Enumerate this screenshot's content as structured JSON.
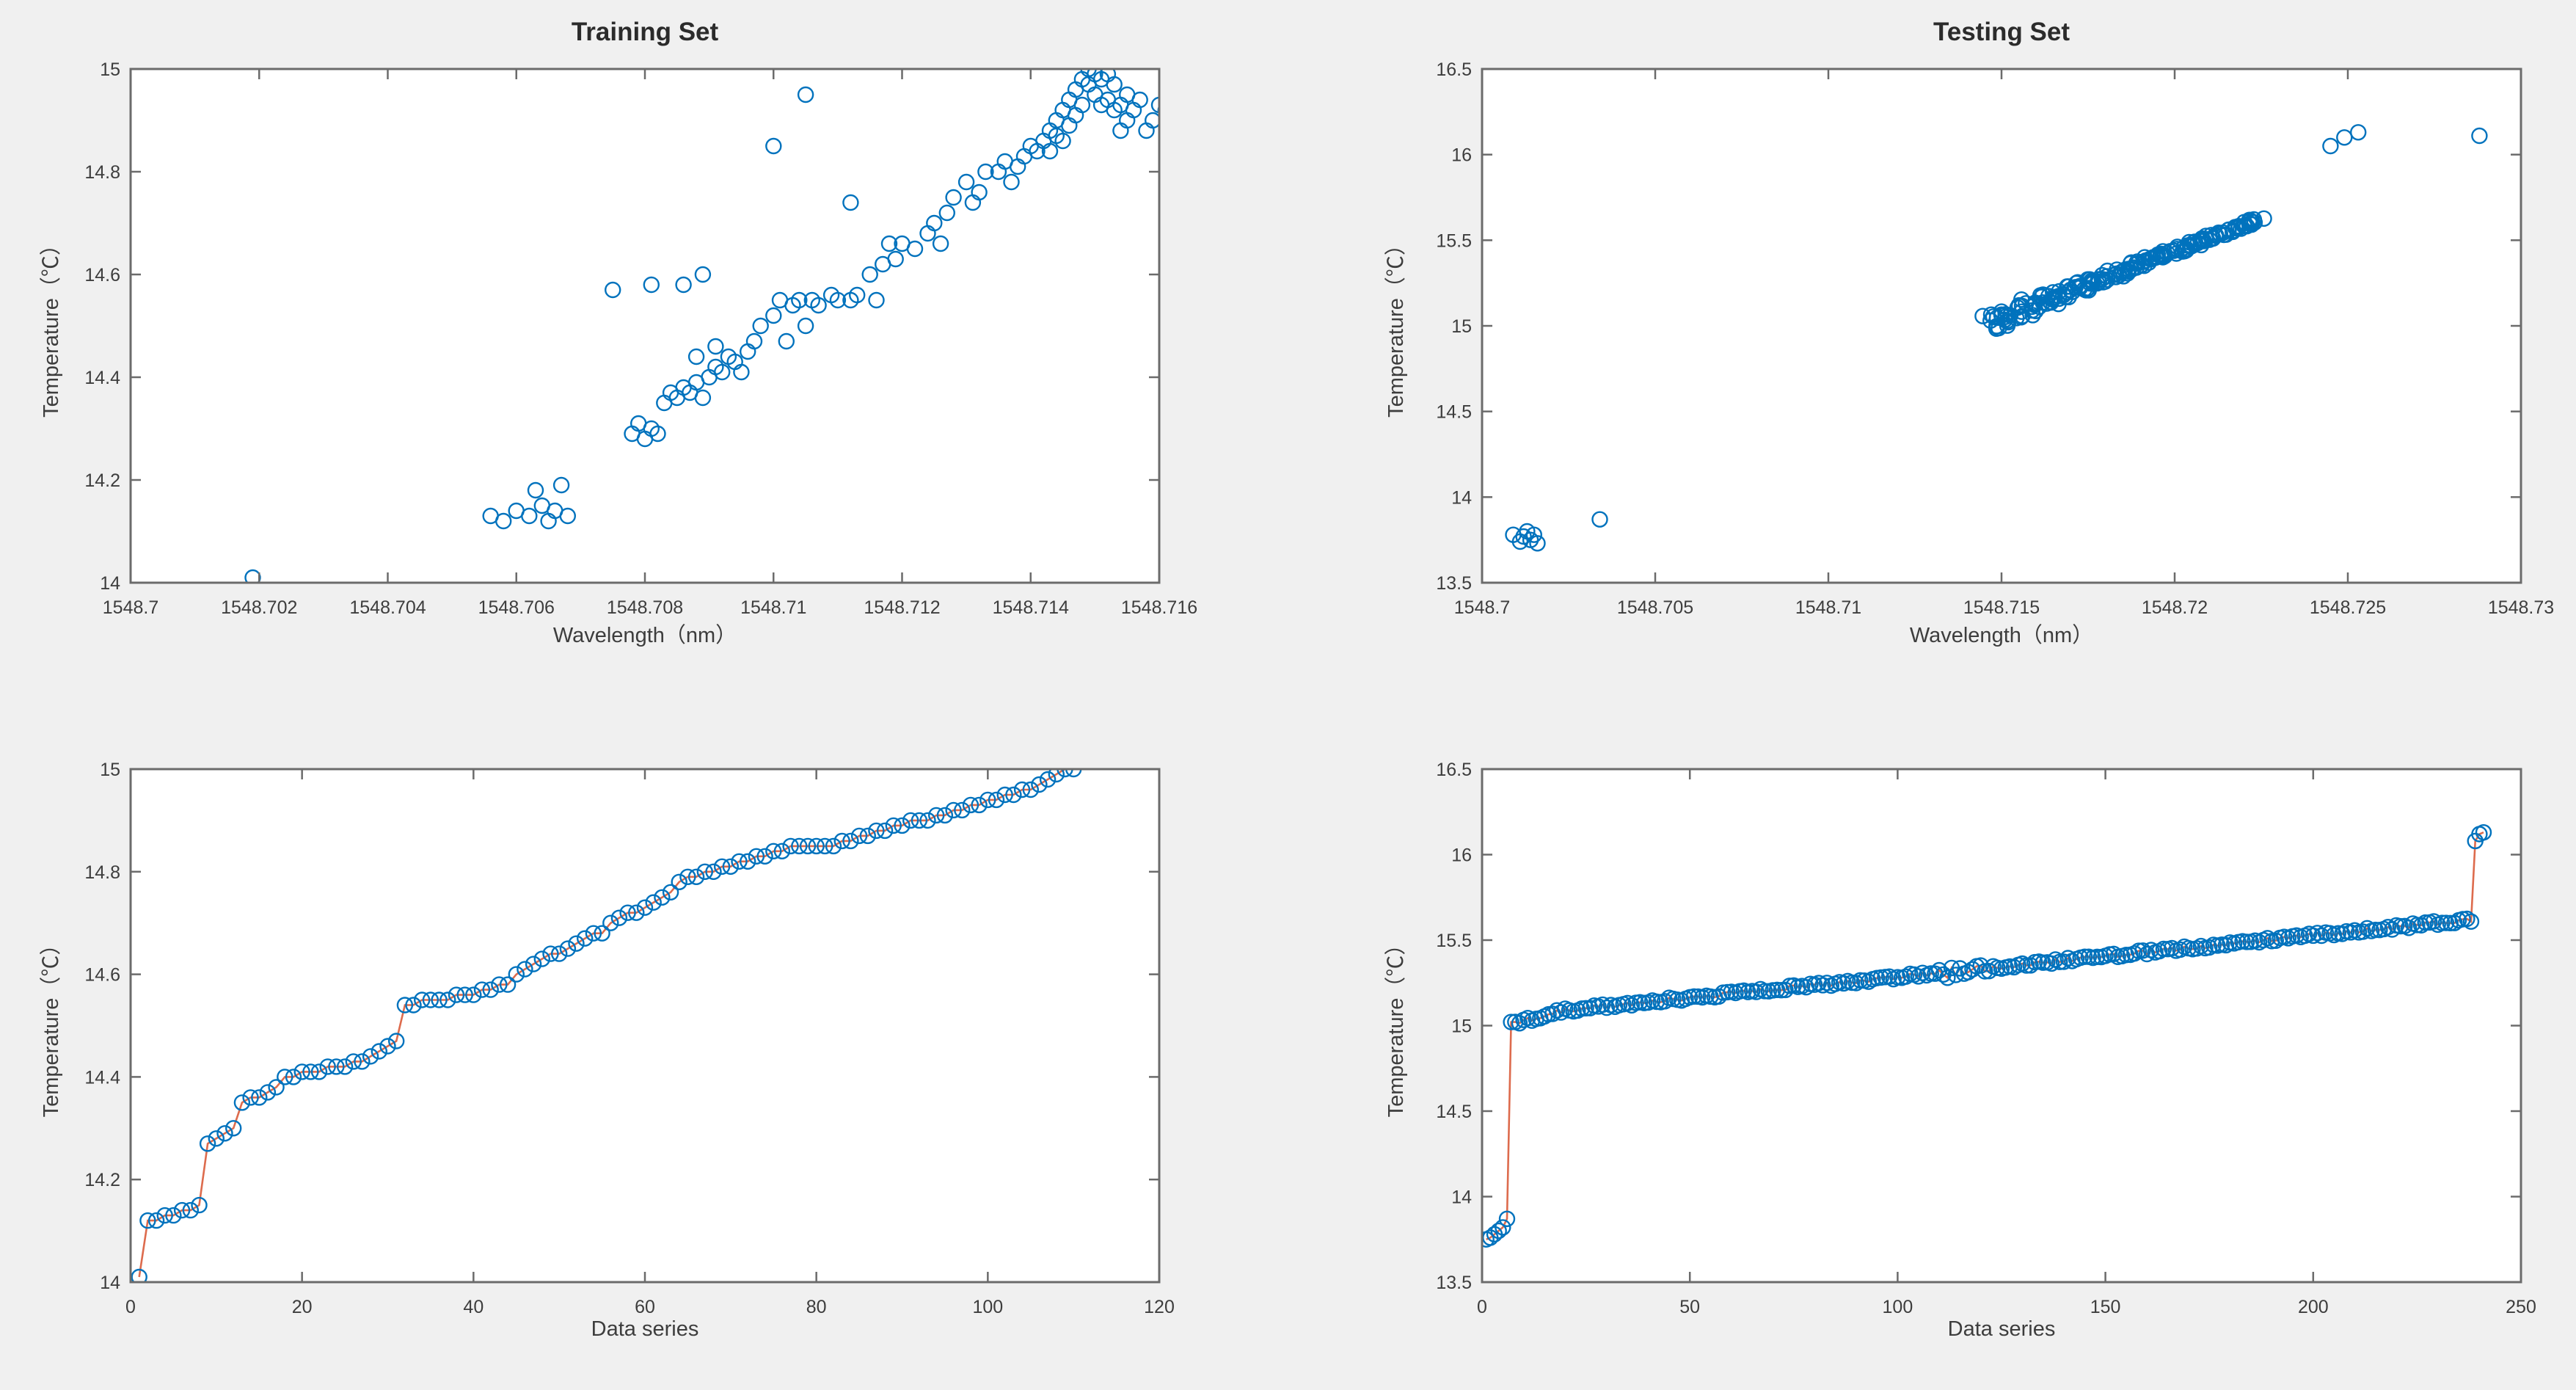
{
  "figure": {
    "background_color": "#f0f0f0",
    "plot_background_color": "#ffffff",
    "axis_color": "#6b6b6b",
    "text_color": "#3d3d3d",
    "marker_color": "#0072BD",
    "line_color": "#DD6B4D"
  },
  "chart_data": [
    {
      "type": "scatter",
      "title": "Training Set",
      "xlabel": "Wavelength（nm）",
      "ylabel": "Temperature（℃）",
      "xlim": [
        1548.7,
        1548.716
      ],
      "ylim": [
        14,
        15
      ],
      "xtick_labels": [
        "1548.7",
        "1548.702",
        "1548.704",
        "1548.706",
        "1548.708",
        "1548.71",
        "1548.712",
        "1548.714",
        "1548.716"
      ],
      "ytick_labels": [
        "14",
        "14.2",
        "14.4",
        "14.6",
        "14.8",
        "15"
      ],
      "grid": false,
      "legend": null,
      "series": [
        {
          "type": "scatter",
          "points": [
            [
              1548.7019,
              14.01
            ],
            [
              1548.7056,
              14.13
            ],
            [
              1548.7058,
              14.12
            ],
            [
              1548.706,
              14.14
            ],
            [
              1548.7062,
              14.13
            ],
            [
              1548.7064,
              14.15
            ],
            [
              1548.7065,
              14.12
            ],
            [
              1548.7066,
              14.14
            ],
            [
              1548.7068,
              14.13
            ],
            [
              1548.7063,
              14.18
            ],
            [
              1548.7067,
              14.19
            ],
            [
              1548.7078,
              14.29
            ],
            [
              1548.7079,
              14.31
            ],
            [
              1548.708,
              14.28
            ],
            [
              1548.7081,
              14.3
            ],
            [
              1548.7082,
              14.29
            ],
            [
              1548.7075,
              14.57
            ],
            [
              1548.7081,
              14.58
            ],
            [
              1548.7083,
              14.35
            ],
            [
              1548.7084,
              14.37
            ],
            [
              1548.7085,
              14.36
            ],
            [
              1548.7086,
              14.38
            ],
            [
              1548.7087,
              14.37
            ],
            [
              1548.7088,
              14.39
            ],
            [
              1548.7089,
              14.36
            ],
            [
              1548.709,
              14.4
            ],
            [
              1548.7091,
              14.42
            ],
            [
              1548.7092,
              14.41
            ],
            [
              1548.7093,
              14.44
            ],
            [
              1548.7094,
              14.43
            ],
            [
              1548.7095,
              14.41
            ],
            [
              1548.7096,
              14.45
            ],
            [
              1548.7091,
              14.46
            ],
            [
              1548.7088,
              14.44
            ],
            [
              1548.7086,
              14.58
            ],
            [
              1548.7089,
              14.6
            ],
            [
              1548.7097,
              14.47
            ],
            [
              1548.7098,
              14.5
            ],
            [
              1548.71,
              14.52
            ],
            [
              1548.7101,
              14.55
            ],
            [
              1548.7102,
              14.47
            ],
            [
              1548.7103,
              14.54
            ],
            [
              1548.7104,
              14.55
            ],
            [
              1548.7105,
              14.5
            ],
            [
              1548.7106,
              14.55
            ],
            [
              1548.7107,
              14.54
            ],
            [
              1548.7109,
              14.56
            ],
            [
              1548.711,
              14.55
            ],
            [
              1548.7105,
              14.95
            ],
            [
              1548.71,
              14.85
            ],
            [
              1548.7112,
              14.74
            ],
            [
              1548.7112,
              14.55
            ],
            [
              1548.7113,
              14.56
            ],
            [
              1548.7115,
              14.6
            ],
            [
              1548.7116,
              14.55
            ],
            [
              1548.7117,
              14.62
            ],
            [
              1548.7118,
              14.66
            ],
            [
              1548.7119,
              14.63
            ],
            [
              1548.712,
              14.66
            ],
            [
              1548.7122,
              14.65
            ],
            [
              1548.7124,
              14.68
            ],
            [
              1548.7125,
              14.7
            ],
            [
              1548.7126,
              14.66
            ],
            [
              1548.7127,
              14.72
            ],
            [
              1548.7128,
              14.75
            ],
            [
              1548.713,
              14.78
            ],
            [
              1548.7131,
              14.74
            ],
            [
              1548.7132,
              14.76
            ],
            [
              1548.7133,
              14.8
            ],
            [
              1548.7135,
              14.8
            ],
            [
              1548.7136,
              14.82
            ],
            [
              1548.7137,
              14.78
            ],
            [
              1548.7138,
              14.81
            ],
            [
              1548.7139,
              14.83
            ],
            [
              1548.714,
              14.85
            ],
            [
              1548.7141,
              14.84
            ],
            [
              1548.7142,
              14.86
            ],
            [
              1548.7143,
              14.88
            ],
            [
              1548.7143,
              14.84
            ],
            [
              1548.7144,
              14.87
            ],
            [
              1548.7144,
              14.9
            ],
            [
              1548.7145,
              14.92
            ],
            [
              1548.7145,
              14.86
            ],
            [
              1548.7146,
              14.94
            ],
            [
              1548.7146,
              14.89
            ],
            [
              1548.7147,
              14.96
            ],
            [
              1548.7147,
              14.91
            ],
            [
              1548.7148,
              14.98
            ],
            [
              1548.7148,
              14.93
            ],
            [
              1548.7149,
              15.0
            ],
            [
              1548.7149,
              14.97
            ],
            [
              1548.715,
              14.99
            ],
            [
              1548.715,
              14.95
            ],
            [
              1548.7151,
              14.98
            ],
            [
              1548.7151,
              14.93
            ],
            [
              1548.7152,
              14.94
            ],
            [
              1548.7152,
              14.99
            ],
            [
              1548.7153,
              14.92
            ],
            [
              1548.7153,
              14.97
            ],
            [
              1548.7154,
              14.88
            ],
            [
              1548.7154,
              14.93
            ],
            [
              1548.7155,
              14.9
            ],
            [
              1548.7155,
              14.95
            ],
            [
              1548.7156,
              14.92
            ],
            [
              1548.7157,
              14.94
            ],
            [
              1548.7158,
              14.88
            ],
            [
              1548.7159,
              14.9
            ],
            [
              1548.716,
              14.93
            ],
            [
              1548.7161,
              14.92
            ]
          ]
        }
      ]
    },
    {
      "type": "scatter",
      "title": "Testing Set",
      "xlabel": "Wavelength（nm）",
      "ylabel": "Temperature（℃）",
      "xlim": [
        1548.7,
        1548.73
      ],
      "ylim": [
        13.5,
        16.5
      ],
      "xtick_labels": [
        "1548.7",
        "1548.705",
        "1548.71",
        "1548.715",
        "1548.72",
        "1548.725",
        "1548.73"
      ],
      "ytick_labels": [
        "13.5",
        "14",
        "14.5",
        "15",
        "15.5",
        "16",
        "16.5"
      ],
      "grid": false,
      "legend": null,
      "series": [
        {
          "type": "scatter",
          "points": [
            [
              1548.7009,
              13.78
            ],
            [
              1548.7011,
              13.74
            ],
            [
              1548.7012,
              13.77
            ],
            [
              1548.7013,
              13.8
            ],
            [
              1548.7014,
              13.75
            ],
            [
              1548.7015,
              13.78
            ],
            [
              1548.7016,
              13.73
            ],
            [
              1548.7034,
              13.87
            ],
            [
              1548.7245,
              16.05
            ],
            [
              1548.7249,
              16.1
            ],
            [
              1548.7253,
              16.13
            ],
            [
              1548.7288,
              16.11
            ]
          ]
        },
        {
          "type": "band",
          "x_start": 1548.7146,
          "x_end": 1548.7224,
          "y_start": 15.02,
          "y_end": 15.62,
          "count": 195,
          "spread_y_start": 0.055,
          "spread_y_end": 0.007,
          "spread_x": 0.00018
        }
      ]
    },
    {
      "type": "line",
      "title": "",
      "xlabel": "Data series",
      "ylabel": "Temperature（℃）",
      "xlim": [
        0,
        120
      ],
      "ylim": [
        14,
        15
      ],
      "xtick_labels": [
        "0",
        "20",
        "40",
        "60",
        "80",
        "100",
        "120"
      ],
      "ytick_labels": [
        "14",
        "14.2",
        "14.4",
        "14.6",
        "14.8",
        "15"
      ],
      "grid": false,
      "legend": null,
      "series": [
        {
          "type": "staircase",
          "x_start": 1,
          "connect": true,
          "y_values": [
            14.01,
            14.12,
            14.12,
            14.13,
            14.13,
            14.14,
            14.14,
            14.15,
            14.27,
            14.28,
            14.29,
            14.3,
            14.35,
            14.36,
            14.36,
            14.37,
            14.38,
            14.4,
            14.4,
            14.41,
            14.41,
            14.41,
            14.42,
            14.42,
            14.42,
            14.43,
            14.43,
            14.44,
            14.45,
            14.46,
            14.47,
            14.54,
            14.54,
            14.55,
            14.55,
            14.55,
            14.55,
            14.56,
            14.56,
            14.56,
            14.57,
            14.57,
            14.58,
            14.58,
            14.6,
            14.61,
            14.62,
            14.63,
            14.64,
            14.64,
            14.65,
            14.66,
            14.67,
            14.68,
            14.68,
            14.7,
            14.71,
            14.72,
            14.72,
            14.73,
            14.74,
            14.75,
            14.76,
            14.78,
            14.79,
            14.79,
            14.8,
            14.8,
            14.81,
            14.81,
            14.82,
            14.82,
            14.83,
            14.83,
            14.84,
            14.84,
            14.85,
            14.85,
            14.85,
            14.85,
            14.85,
            14.85,
            14.86,
            14.86,
            14.87,
            14.87,
            14.88,
            14.88,
            14.89,
            14.89,
            14.9,
            14.9,
            14.9,
            14.91,
            14.91,
            14.92,
            14.92,
            14.93,
            14.93,
            14.94,
            14.94,
            14.95,
            14.95,
            14.96,
            14.96,
            14.97,
            14.98,
            14.99,
            15.0,
            15.0
          ]
        }
      ]
    },
    {
      "type": "line",
      "title": "",
      "xlabel": "Data series",
      "ylabel": "Temperature（℃）",
      "xlim": [
        0,
        250
      ],
      "ylim": [
        13.5,
        16.5
      ],
      "xtick_labels": [
        "0",
        "50",
        "100",
        "150",
        "200",
        "250"
      ],
      "ytick_labels": [
        "13.5",
        "14",
        "14.5",
        "15",
        "15.5",
        "16",
        "16.5"
      ],
      "grid": false,
      "legend": null,
      "series": [
        {
          "type": "run",
          "connect": true,
          "points_pre": [
            [
              1,
              13.75
            ],
            [
              2,
              13.76
            ],
            [
              3,
              13.78
            ],
            [
              4,
              13.8
            ],
            [
              5,
              13.82
            ],
            [
              6,
              13.87
            ]
          ],
          "x_start": 7,
          "x_end": 238,
          "y_start": 15.01,
          "knee_x": 20,
          "knee_y": 15.09,
          "y_end": 15.62,
          "jitter_y": 0.012,
          "wiggle_from": 110,
          "wiggle_to": 122,
          "wiggle_amp": 0.028,
          "points_post": [
            [
              239,
              16.08
            ],
            [
              240,
              16.12
            ],
            [
              241,
              16.13
            ]
          ]
        }
      ]
    }
  ]
}
